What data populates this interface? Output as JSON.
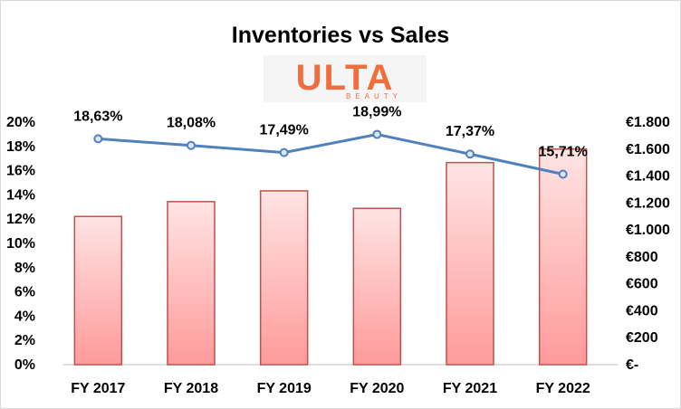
{
  "logo": {
    "brand": "ULTA",
    "sub": "BEAUTY"
  },
  "chart_data": {
    "type": "bar",
    "title": "Inventories vs Sales",
    "categories": [
      "FY 2017",
      "FY 2018",
      "FY 2019",
      "FY 2020",
      "FY 2021",
      "FY 2022"
    ],
    "series": [
      {
        "type": "bar",
        "axis": "right",
        "values": [
          1100,
          1210,
          1290,
          1160,
          1500,
          1600
        ]
      },
      {
        "type": "line",
        "axis": "left",
        "values": [
          18.63,
          18.08,
          17.49,
          18.99,
          17.37,
          15.71
        ],
        "labels": [
          "18,63%",
          "18,08%",
          "17,49%",
          "18,99%",
          "17,37%",
          "15,71%"
        ]
      }
    ],
    "y_left": {
      "ylim": [
        0,
        20
      ],
      "ticks": [
        "0%",
        "2%",
        "4%",
        "6%",
        "8%",
        "10%",
        "12%",
        "14%",
        "16%",
        "18%",
        "20%"
      ]
    },
    "y_right": {
      "ylim": [
        0,
        1800
      ],
      "ticks": [
        "€-",
        "€200",
        "€400",
        "€600",
        "€800",
        "€1.000",
        "€1.200",
        "€1.400",
        "€1.600",
        "€1.800"
      ]
    },
    "grid": false,
    "legend": "none",
    "colors": {
      "bar_top": "#ffe4e4",
      "bar_bottom": "#ff9a9a",
      "bar_border": "#c0504d",
      "line": "#4f81bd",
      "marker_fill": "#dce6f2",
      "marker_stroke": "#4f81bd",
      "logo": "#f26d3c"
    }
  }
}
